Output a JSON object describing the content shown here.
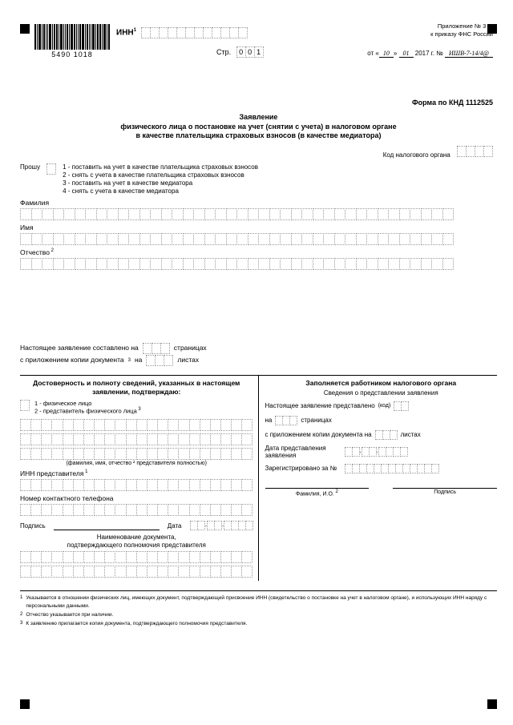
{
  "barcode_number": "5490 1018",
  "inn_label": "ИНН",
  "top_right_l1": "Приложение № 3",
  "top_right_l2": "к приказу ФНС России",
  "str_label": "Стр.",
  "str_value": [
    "0",
    "0",
    "1"
  ],
  "date_ot": "от",
  "date_day": "10",
  "date_month": "01",
  "date_year": "2017 г.",
  "date_no": "№",
  "date_num": "ИШВ-7-14/4@",
  "form_code": "Форма по КНД 1112525",
  "title_l1": "Заявление",
  "title_l2": "физического лица о постановке на учет (снятии с учета) в налоговом органе",
  "title_l3": "в качестве плательщика страховых взносов (в качестве медиатора)",
  "kod_label": "Код налогового органа",
  "proshu": "Прошу",
  "opt1": "1 - поставить на учет в качестве плательщика страховых взносов",
  "opt2": "2 - снять с учета в качестве плательщика страховых взносов",
  "opt3": "3 - поставить на учет в качестве медиатора",
  "opt4": "4 - снять с учета в качестве медиатора",
  "familia": "Фамилия",
  "imya": "Имя",
  "otchestvo": "Отчество",
  "mid1_a": "Настоящее заявление составлено на",
  "mid1_b": "страницах",
  "mid2_a": "с приложением копии документа",
  "mid2_b": "на",
  "mid2_c": "листах",
  "left_head": "Достоверность и полноту сведений, указанных в настоящем заявлении, подтверждаю:",
  "rep1": "1 - физическое лицо",
  "rep2": "2 - представитель физического лица",
  "fio_hint": "(фамилия, имя, отчество ² представителя полностью)",
  "inn_rep": "ИНН представителя",
  "phone": "Номер контактного телефона",
  "podpis": "Подпись",
  "data": "Дата",
  "doc_name_l1": "Наименование документа,",
  "doc_name_l2": "подтверждающего полномочия представителя",
  "right_head": "Заполняется работником налогового органа",
  "right_sub": "Сведения о представлении заявления",
  "r1": "Настоящее заявление представлено",
  "r1_kod": "(код)",
  "r2_na": "на",
  "r2_str": "страницах",
  "r3": "с приложением копии документа на",
  "r3_list": "листах",
  "r4": "Дата представления заявления",
  "r5": "Зарегистрировано за №",
  "fam_io": "Фамилия, И.О.",
  "fn1": "Указывается в отношении физических лиц, имеющих документ, подтверждающий присвоение ИНН (свидетельство о постановке на учет в налоговом органе), и использующих ИНН наряду с персональными данными.",
  "fn2": "Отчество указывается при наличии.",
  "fn3": "К заявлению прилагается копия документа, подтверждающего полномочия представителя."
}
